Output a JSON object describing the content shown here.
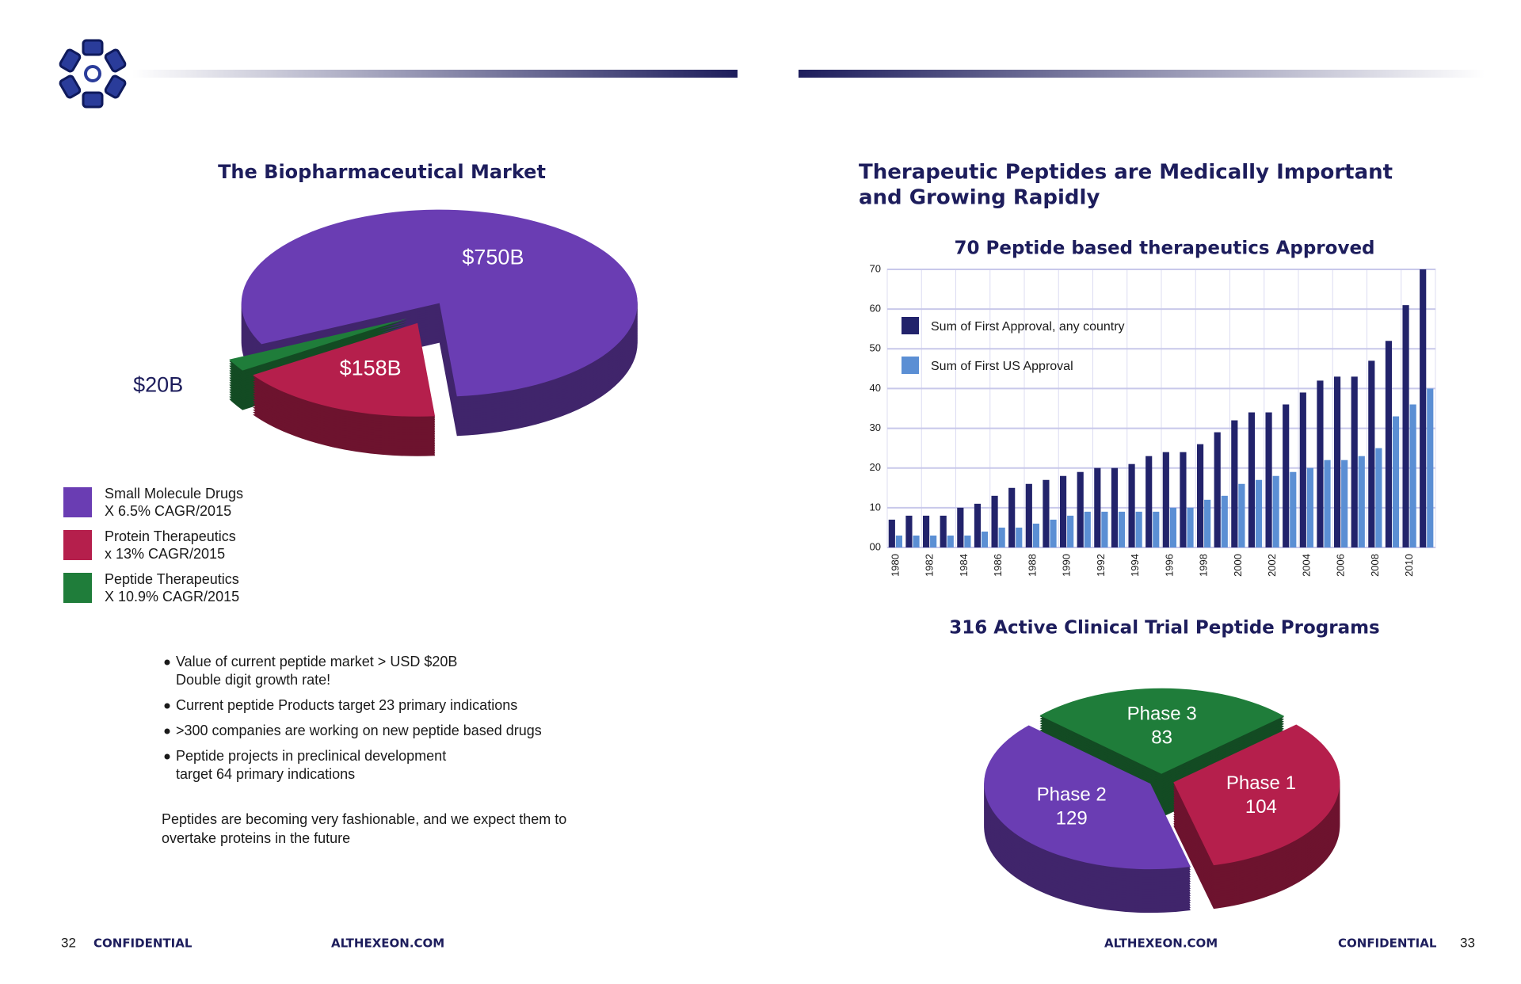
{
  "pages": {
    "left": {
      "bullets": [
        [
          "Value of current peptide market > USD $20B",
          "Double digit growth rate!"
        ],
        [
          "Current peptide Products target 23 primary indications"
        ],
        [
          ">300 companies are working on new peptide based drugs"
        ],
        [
          "Peptide projects in preclinical development",
          "target 64 primary indications"
        ]
      ],
      "closing": [
        "Peptides are becoming very fashionable, and we expect them to",
        "overtake proteins in the future"
      ],
      "footer": {
        "page": "32",
        "confidential": "CONFIDENTIAL",
        "site": "ALTHEXEON.COM"
      }
    },
    "right": {
      "heading": [
        "Therapeutic Peptides are Medically Important",
        "and Growing Rapidly"
      ],
      "footer": {
        "page": "33",
        "confidential": "CONFIDENTIAL",
        "site": "ALTHEXEON.COM"
      }
    }
  },
  "chart_data": [
    {
      "type": "pie",
      "title": "The Biopharmaceutical Market",
      "categories": [
        "Small Molecule Drugs",
        "Protein Therapeutics",
        "Peptide Therapeutics"
      ],
      "legend_notes": [
        "X 6.5% CAGR/2015",
        "x 13% CAGR/2015",
        "X 10.9% CAGR/2015"
      ],
      "values": [
        750,
        158,
        20
      ],
      "value_labels": [
        "$750B",
        "$158B",
        "$20B"
      ],
      "colors": [
        "#6a3db3",
        "#b51f4c",
        "#1f7d3a"
      ]
    },
    {
      "type": "bar",
      "title": "70 Peptide based therapeutics Approved",
      "categories": [
        "1980",
        null,
        "1982",
        null,
        "1984",
        null,
        "1986",
        null,
        "1988",
        null,
        "1990",
        null,
        "1992",
        null,
        "1994",
        null,
        "1996",
        null,
        "1998",
        null,
        "2000",
        null,
        "2002",
        null,
        "2004",
        null,
        "2006",
        null,
        "2008",
        null,
        "2010",
        null
      ],
      "series": [
        {
          "name": "Sum of First Approval, any country",
          "color": "#22236b",
          "values": [
            7,
            8,
            8,
            8,
            10,
            11,
            13,
            15,
            16,
            17,
            18,
            19,
            20,
            20,
            21,
            23,
            24,
            24,
            26,
            29,
            32,
            34,
            34,
            36,
            39,
            42,
            43,
            43,
            47,
            52,
            61,
            70
          ]
        },
        {
          "name": "Sum of First US Approval",
          "color": "#5b8fd4",
          "values": [
            3,
            3,
            3,
            3,
            3,
            4,
            5,
            5,
            6,
            7,
            8,
            9,
            9,
            9,
            9,
            9,
            10,
            10,
            12,
            13,
            16,
            17,
            18,
            19,
            20,
            22,
            22,
            23,
            25,
            33,
            36,
            40
          ]
        }
      ],
      "ylim": [
        0,
        70
      ],
      "yticks": [
        {
          "value": 0,
          "label": "00"
        },
        10,
        20,
        30,
        40,
        50,
        60,
        70
      ],
      "grid": true,
      "legend": "upper left"
    },
    {
      "type": "pie",
      "title": "316 Active Clinical Trial Peptide Programs",
      "categories": [
        "Phase 3",
        "Phase 1",
        "Phase 2"
      ],
      "values": [
        83,
        104,
        129
      ],
      "colors": [
        "#1f7d3a",
        "#b51f4c",
        "#6a3db3"
      ]
    }
  ]
}
